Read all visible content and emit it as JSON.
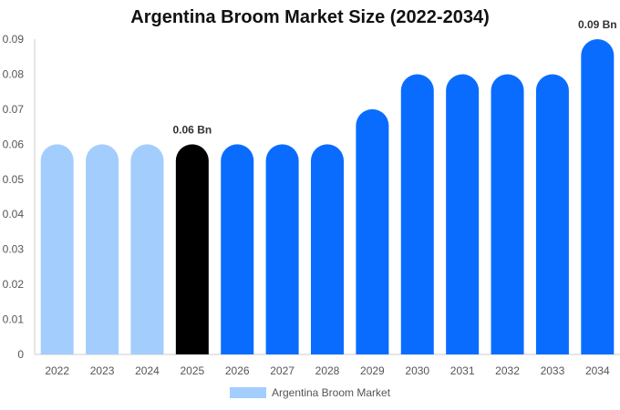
{
  "chart_data": {
    "type": "bar",
    "title": "Argentina Broom Market Size (2022-2034)",
    "categories": [
      "2022",
      "2023",
      "2024",
      "2025",
      "2026",
      "2027",
      "2028",
      "2029",
      "2030",
      "2031",
      "2032",
      "2033",
      "2034"
    ],
    "series": [
      {
        "name": "Argentina Broom Market",
        "values": [
          0.06,
          0.06,
          0.06,
          0.06,
          0.06,
          0.06,
          0.06,
          0.07,
          0.08,
          0.08,
          0.08,
          0.08,
          0.09
        ]
      }
    ],
    "ylim": [
      0,
      0.09
    ],
    "yticks": [
      "0",
      "0.01",
      "0.02",
      "0.03",
      "0.04",
      "0.05",
      "0.06",
      "0.07",
      "0.08",
      "0.09"
    ],
    "annotations": [
      {
        "category": "2025",
        "text": "0.06 Bn"
      },
      {
        "category": "2034",
        "text": "0.09 Bn"
      }
    ],
    "bar_colors": [
      "#a3cdfc",
      "#a3cdfc",
      "#a3cdfc",
      "#000000",
      "#0a6cff",
      "#0a6cff",
      "#0a6cff",
      "#0a6cff",
      "#0a6cff",
      "#0a6cff",
      "#0a6cff",
      "#0a6cff",
      "#0a6cff"
    ],
    "legend_color": "#a3cdfc",
    "legend_position": "bottom",
    "grid": false
  }
}
